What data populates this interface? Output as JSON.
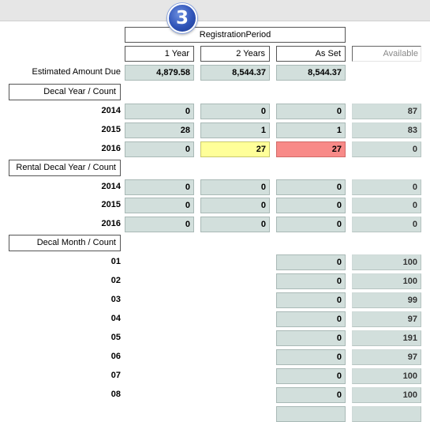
{
  "step_number": "3",
  "header": {
    "title": "RegistrationPeriod"
  },
  "columns": {
    "one_year": "1 Year",
    "two_years": "2 Years",
    "as_set": "As Set",
    "available": "Available"
  },
  "estimated": {
    "label": "Estimated Amount Due",
    "one_year": "4,879.58",
    "two_years": "8,544.37",
    "as_set": "8,544.37"
  },
  "decal_year": {
    "title": "Decal Year / Count",
    "rows": [
      {
        "label": "2014",
        "one_year": "0",
        "two_years": "0",
        "as_set": "0",
        "available": "87"
      },
      {
        "label": "2015",
        "one_year": "28",
        "two_years": "1",
        "as_set": "1",
        "available": "83"
      },
      {
        "label": "2016",
        "one_year": "0",
        "two_years": "27",
        "as_set": "27",
        "available": "0"
      }
    ]
  },
  "rental_decal_year": {
    "title": "Rental Decal Year / Count",
    "rows": [
      {
        "label": "2014",
        "one_year": "0",
        "two_years": "0",
        "as_set": "0",
        "available": "0"
      },
      {
        "label": "2015",
        "one_year": "0",
        "two_years": "0",
        "as_set": "0",
        "available": "0"
      },
      {
        "label": "2016",
        "one_year": "0",
        "two_years": "0",
        "as_set": "0",
        "available": "0"
      }
    ]
  },
  "decal_month": {
    "title": "Decal Month / Count",
    "rows": [
      {
        "label": "01",
        "as_set": "0",
        "available": "100"
      },
      {
        "label": "02",
        "as_set": "0",
        "available": "100"
      },
      {
        "label": "03",
        "as_set": "0",
        "available": "99"
      },
      {
        "label": "04",
        "as_set": "0",
        "available": "97"
      },
      {
        "label": "05",
        "as_set": "0",
        "available": "191"
      },
      {
        "label": "06",
        "as_set": "0",
        "available": "97"
      },
      {
        "label": "07",
        "as_set": "0",
        "available": "100"
      },
      {
        "label": "08",
        "as_set": "0",
        "available": "100"
      }
    ]
  },
  "highlight_colors": {
    "yellow": "#ffff99",
    "red": "#f88a88",
    "cell": "#d2dfdc"
  }
}
